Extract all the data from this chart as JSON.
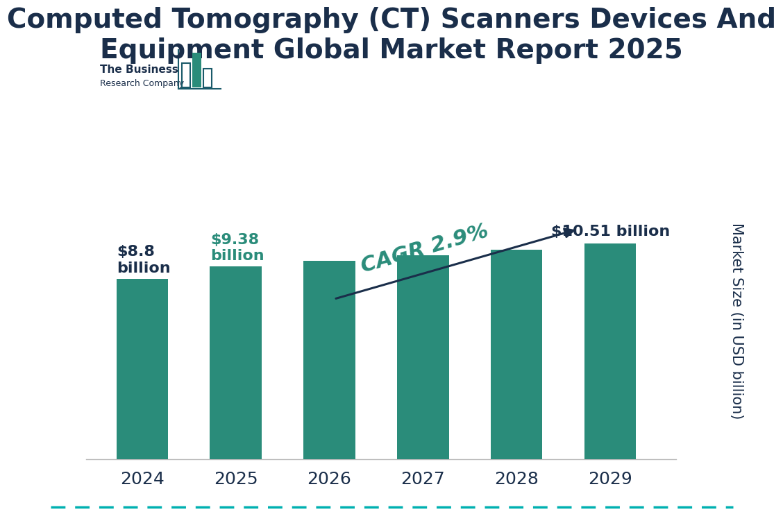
{
  "title": "Computed Tomography (CT) Scanners Devices And\nEquipment Global Market Report 2025",
  "years": [
    "2024",
    "2025",
    "2026",
    "2027",
    "2028",
    "2029"
  ],
  "values": [
    8.8,
    9.38,
    9.65,
    9.93,
    10.22,
    10.51
  ],
  "bar_color": "#2a8c7a",
  "title_color": "#1a2e4a",
  "background_color": "#ffffff",
  "ylabel": "Market Size (in USD billion)",
  "ylabel_color": "#1a2e4a",
  "label_2024": "$8.8\nbillion",
  "label_2025": "$9.38\nbillion",
  "label_2029": "$10.51 billion",
  "label_2024_color": "#1a2e4a",
  "label_2025_color": "#2a8c7a",
  "label_2029_color": "#1a2e4a",
  "cagr_text": "CAGR 2.9%",
  "cagr_color": "#2a8c7a",
  "arrow_color": "#1a2e4a",
  "dashed_line_color": "#00b0b0",
  "title_fontsize": 28,
  "tick_fontsize": 18,
  "ylabel_fontsize": 15,
  "logo_text1": "The Business",
  "logo_text2": "Research Company",
  "logo_color": "#1a2e4a",
  "logo_bar_color": "#2a8c7a",
  "logo_outline_color": "#1a5a6a"
}
